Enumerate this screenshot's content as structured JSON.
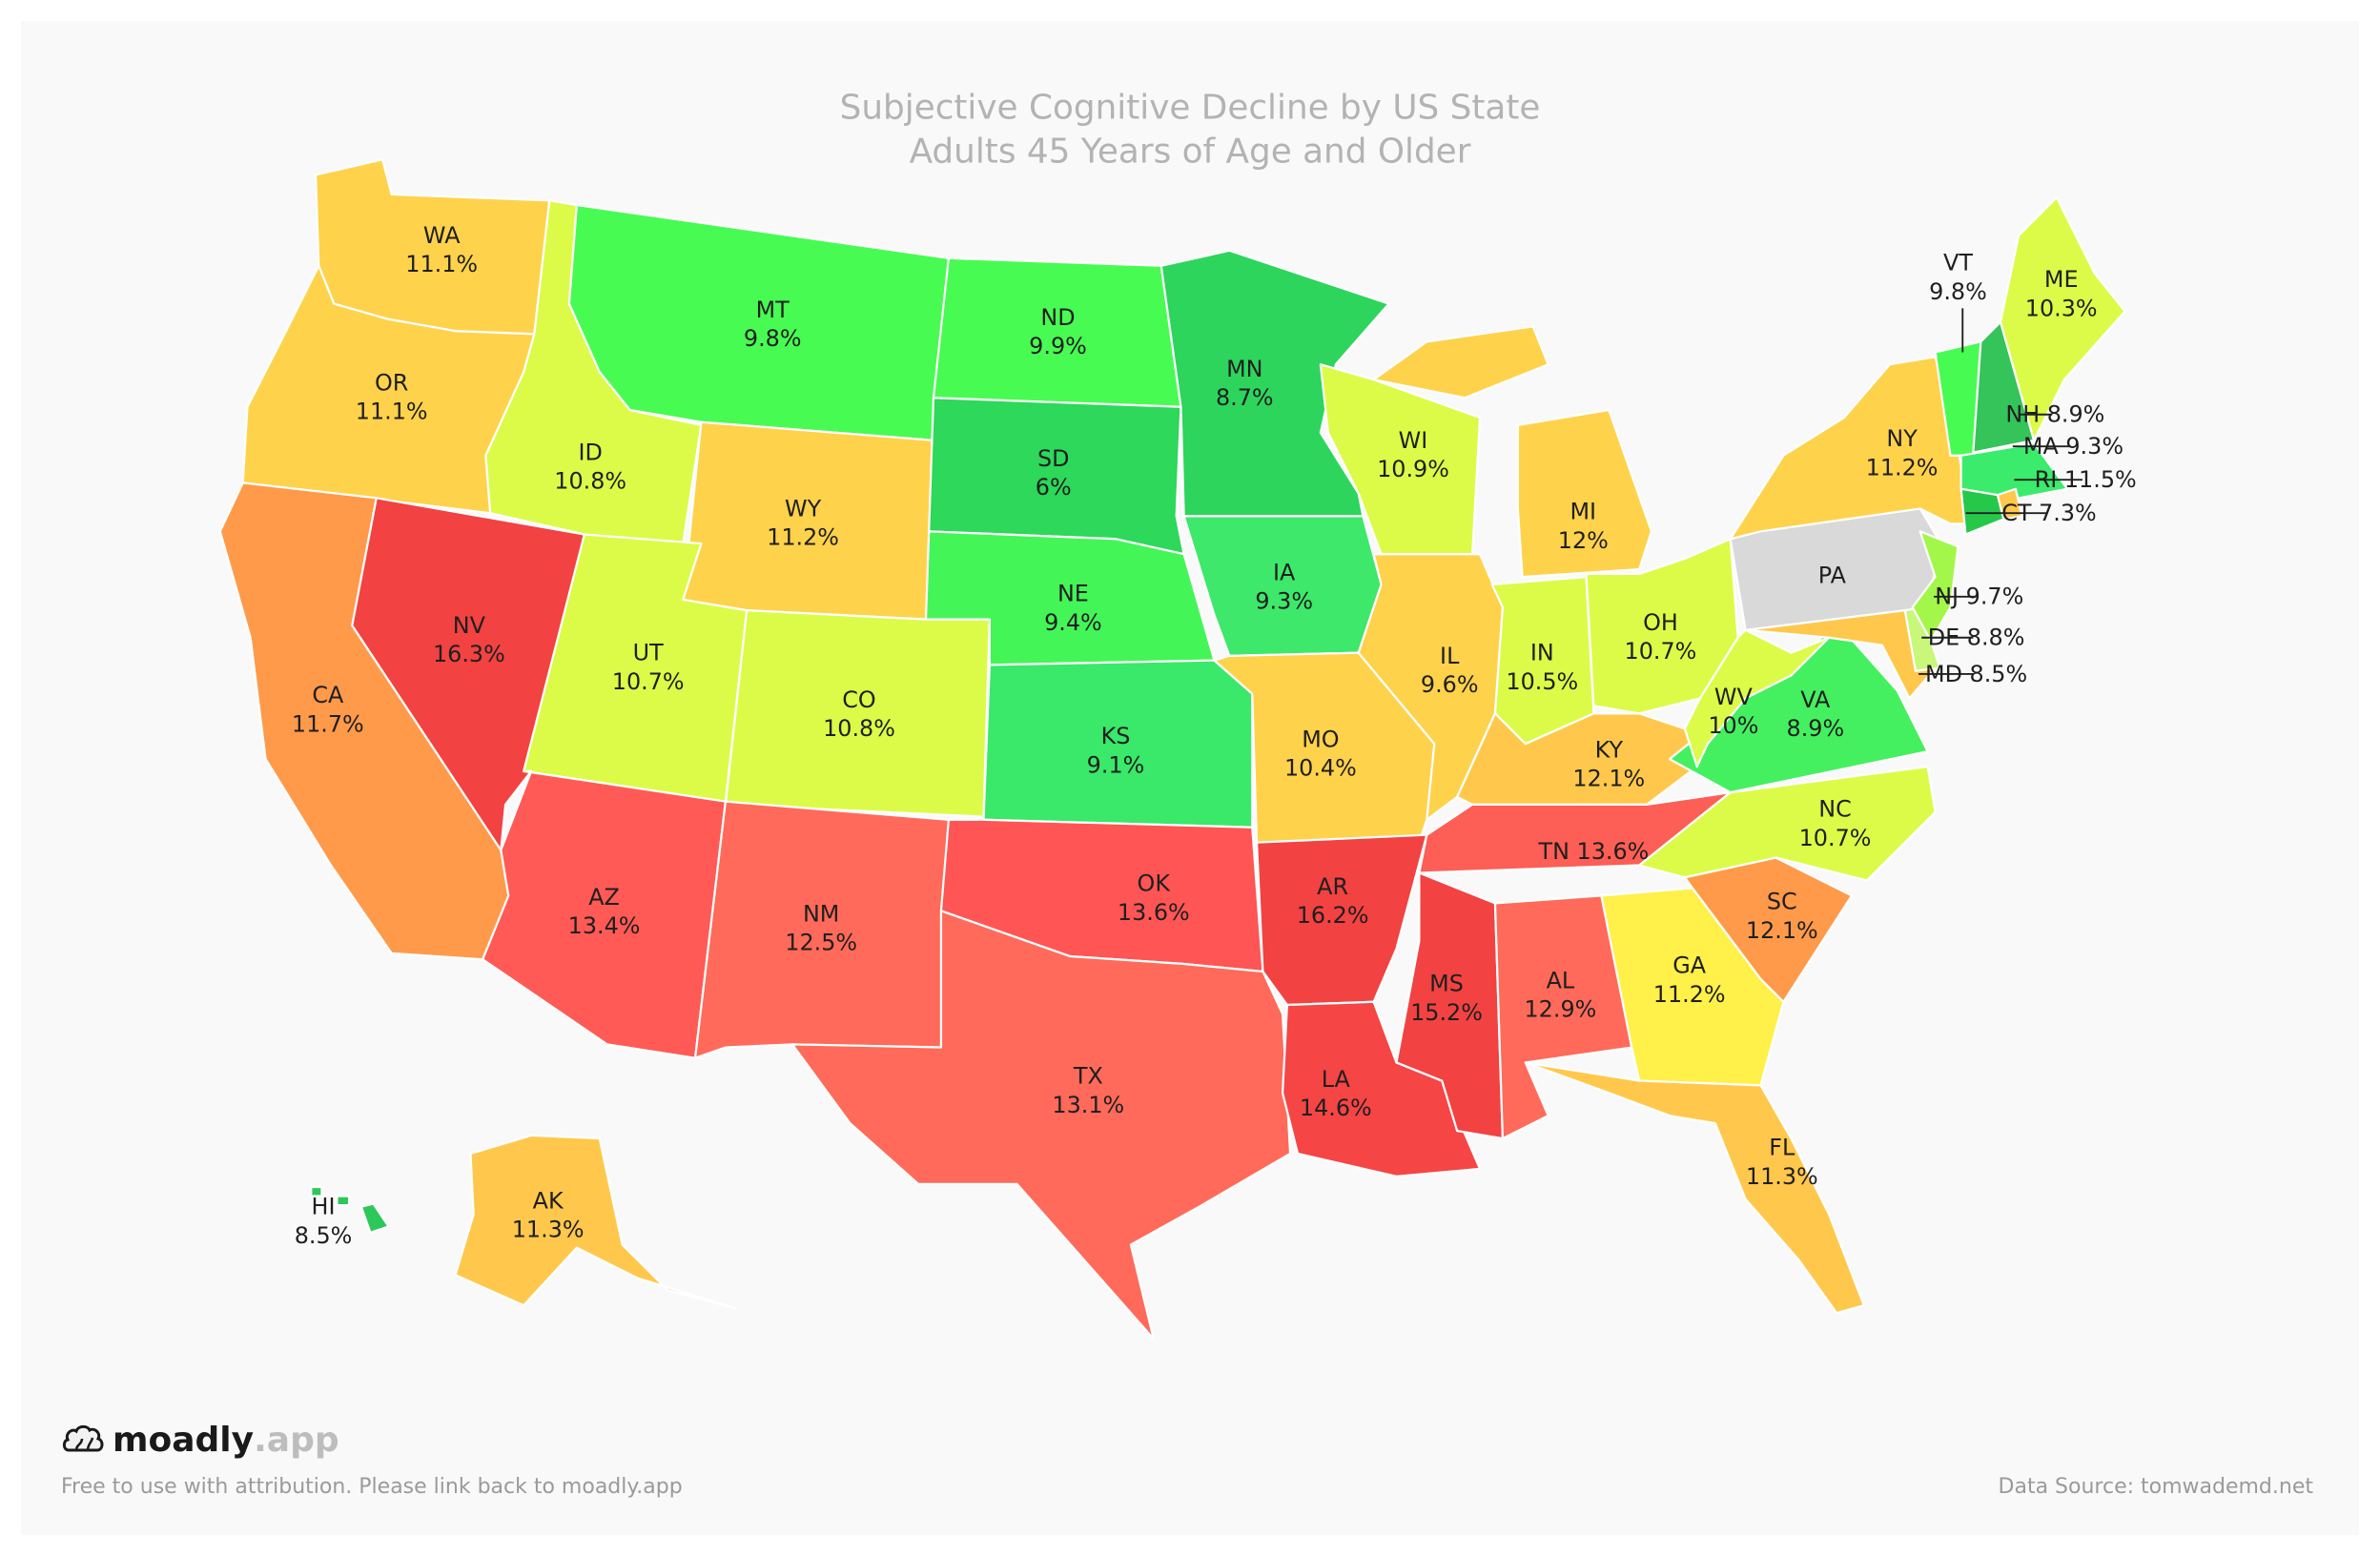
{
  "title": "Subjective Cognitive Decline by US State",
  "subtitle": "Adults 45 Years of Age and Older",
  "brand": {
    "name": "moadly",
    "tld": ".app",
    "icon": "brain-icon"
  },
  "footer": {
    "attribution": "Free to use with attribution. Please link back to moadly.app",
    "source": "Data Source: tomwademd.net"
  },
  "no_data_color": "#d9d9d9",
  "states": {
    "WA": {
      "value": "11.1%",
      "color": "#ffd24c"
    },
    "OR": {
      "value": "11.1%",
      "color": "#ffd24c"
    },
    "CA": {
      "value": "11.7%",
      "color": "#ff9a4a"
    },
    "NV": {
      "value": "16.3%",
      "color": "#f24242"
    },
    "ID": {
      "value": "10.8%",
      "color": "#dcfb48"
    },
    "MT": {
      "value": "9.8%",
      "color": "#48fb52"
    },
    "WY": {
      "value": "11.2%",
      "color": "#ffd24c"
    },
    "UT": {
      "value": "10.7%",
      "color": "#dcfb48"
    },
    "CO": {
      "value": "10.8%",
      "color": "#dcfb48"
    },
    "AZ": {
      "value": "13.4%",
      "color": "#ff5a55"
    },
    "NM": {
      "value": "12.5%",
      "color": "#ff6a5a"
    },
    "ND": {
      "value": "9.9%",
      "color": "#48fb52"
    },
    "SD": {
      "value": "6%",
      "color": "#2dd85a"
    },
    "NE": {
      "value": "9.4%",
      "color": "#44f558"
    },
    "KS": {
      "value": "9.1%",
      "color": "#3ae86a"
    },
    "OK": {
      "value": "13.6%",
      "color": "#ff5555"
    },
    "TX": {
      "value": "13.1%",
      "color": "#ff6a5a"
    },
    "MN": {
      "value": "8.7%",
      "color": "#2dd55c"
    },
    "IA": {
      "value": "9.3%",
      "color": "#3de86a"
    },
    "MO": {
      "value": "10.4%",
      "color": "#ffd24c"
    },
    "AR": {
      "value": "16.2%",
      "color": "#f24242"
    },
    "LA": {
      "value": "14.6%",
      "color": "#f54545"
    },
    "WI": {
      "value": "10.9%",
      "color": "#dcfb48"
    },
    "IL": {
      "value": "9.6%",
      "color": "#ffd24c"
    },
    "MI": {
      "value": "12%",
      "color": "#ffd24c"
    },
    "IN": {
      "value": "10.5%",
      "color": "#dcfb48"
    },
    "OH": {
      "value": "10.7%",
      "color": "#dcfb48"
    },
    "KY": {
      "value": "12.1%",
      "color": "#ffc84c"
    },
    "TN": {
      "value": "13.6%",
      "color": "#fd5e55"
    },
    "MS": {
      "value": "15.2%",
      "color": "#f24242"
    },
    "AL": {
      "value": "12.9%",
      "color": "#ff6a5a"
    },
    "GA": {
      "value": "11.2%",
      "color": "#fff04a"
    },
    "FL": {
      "value": "11.3%",
      "color": "#ffc84c"
    },
    "SC": {
      "value": "12.1%",
      "color": "#ff9a4a"
    },
    "NC": {
      "value": "10.7%",
      "color": "#dcfb48"
    },
    "VA": {
      "value": "8.9%",
      "color": "#44f060"
    },
    "WV": {
      "value": "10%",
      "color": "#dcfb48"
    },
    "MD": {
      "value": "8.5%",
      "color": "#ffc84c"
    },
    "DE": {
      "value": "8.8%",
      "color": "#c8f77a"
    },
    "PA": {
      "value": "",
      "color": "#d9d9d9"
    },
    "NY": {
      "value": "11.2%",
      "color": "#ffd24c"
    },
    "NJ": {
      "value": "9.7%",
      "color": "#a3f74a"
    },
    "VT": {
      "value": "9.8%",
      "color": "#48fb52"
    },
    "NH": {
      "value": "8.9%",
      "color": "#34c45a"
    },
    "ME": {
      "value": "10.3%",
      "color": "#dcfb48"
    },
    "MA": {
      "value": "9.3%",
      "color": "#3aeb6c"
    },
    "RI": {
      "value": "11.5%",
      "color": "#ffc84c"
    },
    "CT": {
      "value": "7.3%",
      "color": "#26c84a"
    },
    "AK": {
      "value": "11.3%",
      "color": "#ffc84c"
    },
    "HI": {
      "value": "8.5%",
      "color": "#2dc85a"
    }
  }
}
